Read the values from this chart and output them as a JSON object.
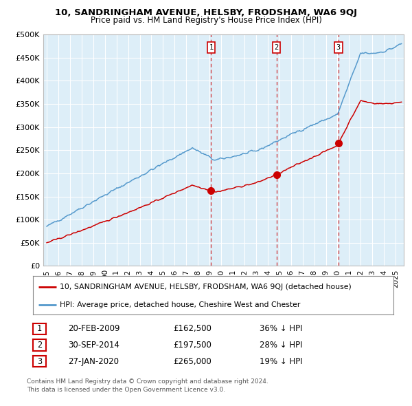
{
  "title": "10, SANDRINGHAM AVENUE, HELSBY, FRODSHAM, WA6 9QJ",
  "subtitle": "Price paid vs. HM Land Registry's House Price Index (HPI)",
  "legend_line1": "10, SANDRINGHAM AVENUE, HELSBY, FRODSHAM, WA6 9QJ (detached house)",
  "legend_line2": "HPI: Average price, detached house, Cheshire West and Chester",
  "footnote1": "Contains HM Land Registry data © Crown copyright and database right 2024.",
  "footnote2": "This data is licensed under the Open Government Licence v3.0.",
  "sales": [
    {
      "num": "1",
      "date": "20-FEB-2009",
      "price": "£162,500",
      "pct": "36% ↓ HPI",
      "year": 2009.13
    },
    {
      "num": "2",
      "date": "30-SEP-2014",
      "price": "£197,500",
      "pct": "28% ↓ HPI",
      "year": 2014.75
    },
    {
      "num": "3",
      "date": "27-JAN-2020",
      "price": "£265,000",
      "pct": "19% ↓ HPI",
      "year": 2020.08
    }
  ],
  "sale_prices": [
    162500,
    197500,
    265000
  ],
  "hpi_color": "#5599cc",
  "price_color": "#cc0000",
  "bg_color": "#ffffff",
  "plot_bg_color": "#ddeef8",
  "grid_color": "#ffffff",
  "vline_color": "#cc0000",
  "ylim": [
    0,
    500000
  ],
  "yticks": [
    0,
    50000,
    100000,
    150000,
    200000,
    250000,
    300000,
    350000,
    400000,
    450000,
    500000
  ],
  "ytick_labels": [
    "£0",
    "£50K",
    "£100K",
    "£150K",
    "£200K",
    "£250K",
    "£300K",
    "£350K",
    "£400K",
    "£450K",
    "£500K"
  ],
  "xmin": 1994.7,
  "xmax": 2025.7
}
